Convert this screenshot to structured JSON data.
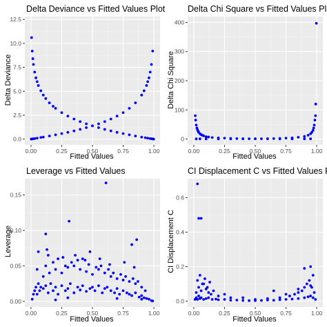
{
  "theme": {
    "panel_bg": "#ebebeb",
    "grid_major": "#ffffff",
    "grid_minor": "#f4f4f4",
    "point_color": "#0000ff",
    "tick_color": "#333333",
    "text_color": "#000000",
    "tick_text_color": "#4d4d4d"
  },
  "chart_data": [
    {
      "type": "scatter",
      "title": "Delta Deviance vs Fitted Values Plot",
      "xlabel": "Fitted Values",
      "ylabel": "Delta Deviance",
      "xlim": [
        -0.05,
        1.05
      ],
      "ylim": [
        -0.6,
        12.8
      ],
      "xticks": [
        0.0,
        0.25,
        0.5,
        0.75,
        1.0
      ],
      "xtick_labels": [
        "0.00",
        "0.25",
        "0.50",
        "0.75",
        "1.00"
      ],
      "yticks": [
        0.0,
        2.5,
        5.0,
        7.5,
        10.0,
        12.5
      ],
      "ytick_labels": [
        "0.0",
        "2.5",
        "5.0",
        "7.5",
        "10.0",
        "12.5"
      ],
      "grid": true,
      "series": [
        {
          "marker": "point",
          "x": [
            0.005,
            0.01,
            0.015,
            0.02,
            0.03,
            0.04,
            0.05,
            0.06,
            0.08,
            0.1,
            0.12,
            0.15,
            0.18,
            0.2,
            0.25,
            0.3,
            0.35,
            0.4,
            0.45,
            0.5,
            0.55,
            0.6,
            0.65,
            0.7,
            0.75,
            0.8,
            0.85,
            0.9,
            0.93,
            0.95,
            0.97,
            0.98,
            0.99,
            0.995,
            0.998,
            0.002,
            0.005,
            0.01,
            0.02,
            0.03,
            0.05,
            0.08,
            0.1,
            0.15,
            0.2,
            0.25,
            0.3,
            0.35,
            0.4,
            0.45,
            0.5,
            0.55,
            0.6,
            0.65,
            0.7,
            0.75,
            0.8,
            0.85,
            0.9,
            0.92,
            0.94,
            0.95,
            0.96,
            0.97,
            0.98,
            0.99
          ],
          "y": [
            10.6,
            9.2,
            8.4,
            7.8,
            7.0,
            6.4,
            6.0,
            5.6,
            5.05,
            4.6,
            4.24,
            3.79,
            3.43,
            3.22,
            2.77,
            2.41,
            2.1,
            1.83,
            1.6,
            1.39,
            1.2,
            1.02,
            0.86,
            0.71,
            0.58,
            0.45,
            0.33,
            0.21,
            0.15,
            0.1,
            0.06,
            0.04,
            0.02,
            0.01,
            0.0,
            0.0,
            0.01,
            0.02,
            0.04,
            0.06,
            0.1,
            0.17,
            0.21,
            0.33,
            0.45,
            0.58,
            0.71,
            0.86,
            1.02,
            1.2,
            1.39,
            1.6,
            1.83,
            2.1,
            2.41,
            2.77,
            3.22,
            3.79,
            4.6,
            5.05,
            5.6,
            6.0,
            6.4,
            7.0,
            7.8,
            9.2
          ]
        }
      ]
    },
    {
      "type": "scatter",
      "title": "Delta Chi Square vs Fitted Values Plot",
      "xlabel": "Fitted Values",
      "ylabel": "Delta Chi Square",
      "xlim": [
        -0.05,
        1.05
      ],
      "ylim": [
        -20,
        420
      ],
      "xticks": [
        0.0,
        0.25,
        0.5,
        0.75,
        1.0
      ],
      "xtick_labels": [
        "0.00",
        "0.25",
        "0.50",
        "0.75",
        "1.00"
      ],
      "yticks": [
        0,
        100,
        200,
        300,
        400
      ],
      "ytick_labels": [
        "0",
        "100",
        "200",
        "300",
        "400"
      ],
      "grid": true,
      "series": [
        {
          "marker": "point",
          "x": [
            0.012,
            0.015,
            0.02,
            0.025,
            0.03,
            0.035,
            0.04,
            0.05,
            0.06,
            0.07,
            0.08,
            0.1,
            0.12,
            0.15,
            0.2,
            0.25,
            0.3,
            0.35,
            0.4,
            0.45,
            0.5,
            0.55,
            0.6,
            0.65,
            0.7,
            0.75,
            0.8,
            0.85,
            0.9,
            0.93,
            0.95,
            0.96,
            0.97,
            0.975,
            0.98,
            0.985,
            0.99,
            0.992,
            0.997,
            0.02,
            0.05,
            0.1,
            0.2,
            0.3,
            0.4,
            0.5,
            0.6,
            0.7,
            0.8,
            0.9,
            0.95
          ],
          "y": [
            80,
            65,
            48,
            38,
            32,
            27,
            23,
            18,
            15,
            13,
            11,
            8,
            7,
            5,
            4,
            3,
            2,
            1.5,
            1.2,
            1,
            1,
            1,
            1.2,
            1.5,
            2,
            3,
            4,
            6,
            9,
            13,
            18,
            23,
            30,
            38,
            48,
            65,
            80,
            120,
            397,
            0.5,
            0.8,
            0.5,
            0.3,
            0.4,
            0.6,
            0.8,
            0.6,
            0.4,
            0.3,
            0.5,
            0.8
          ]
        }
      ]
    },
    {
      "type": "scatter",
      "title": "Leverage vs Fitted Values",
      "xlabel": "Fitted Values",
      "ylabel": "Leverage",
      "xlim": [
        -0.05,
        1.05
      ],
      "ylim": [
        -0.008,
        0.173
      ],
      "xticks": [
        0.0,
        0.25,
        0.5,
        0.75,
        1.0
      ],
      "xtick_labels": [
        "0.00",
        "0.25",
        "0.50",
        "0.75",
        "1.00"
      ],
      "yticks": [
        0.0,
        0.05,
        0.1,
        0.15
      ],
      "ytick_labels": [
        "0.00",
        "0.05",
        "0.10",
        "0.15"
      ],
      "grid": true,
      "series": [
        {
          "marker": "point",
          "x": [
            0.01,
            0.02,
            0.03,
            0.04,
            0.05,
            0.06,
            0.07,
            0.08,
            0.1,
            0.12,
            0.14,
            0.16,
            0.18,
            0.2,
            0.22,
            0.25,
            0.28,
            0.3,
            0.32,
            0.35,
            0.38,
            0.4,
            0.42,
            0.45,
            0.48,
            0.5,
            0.52,
            0.55,
            0.58,
            0.6,
            0.62,
            0.65,
            0.68,
            0.7,
            0.72,
            0.75,
            0.78,
            0.8,
            0.82,
            0.85,
            0.88,
            0.9,
            0.92,
            0.94,
            0.96,
            0.98,
            0.99,
            0.1,
            0.15,
            0.2,
            0.25,
            0.3,
            0.35,
            0.4,
            0.45,
            0.5,
            0.55,
            0.6,
            0.65,
            0.7,
            0.75,
            0.8,
            0.85,
            0.9,
            0.05,
            0.12,
            0.18,
            0.22,
            0.28,
            0.33,
            0.38,
            0.42,
            0.47,
            0.53,
            0.57,
            0.63,
            0.67,
            0.73,
            0.77,
            0.83,
            0.87,
            0.93,
            0.06,
            0.14,
            0.26,
            0.36,
            0.44,
            0.56,
            0.64,
            0.76,
            0.84,
            0.12,
            0.31,
            0.61,
            0.82,
            0.86,
            0.13,
            0.48,
            0.3,
            0.7,
            0.9,
            0.2
          ],
          "y": [
            0.003,
            0.01,
            0.015,
            0.02,
            0.01,
            0.025,
            0.015,
            0.02,
            0.018,
            0.022,
            0.012,
            0.025,
            0.015,
            0.02,
            0.01,
            0.022,
            0.015,
            0.018,
            0.025,
            0.012,
            0.02,
            0.016,
            0.022,
            0.014,
            0.018,
            0.02,
            0.015,
            0.022,
            0.012,
            0.018,
            0.02,
            0.015,
            0.012,
            0.018,
            0.01,
            0.015,
            0.012,
            0.01,
            0.008,
            0.012,
            0.006,
            0.008,
            0.005,
            0.004,
            0.003,
            0.001,
            0.0005,
            0.035,
            0.04,
            0.045,
            0.04,
            0.048,
            0.05,
            0.045,
            0.042,
            0.038,
            0.045,
            0.04,
            0.035,
            0.032,
            0.03,
            0.028,
            0.025,
            0.02,
            0.045,
            0.05,
            0.055,
            0.06,
            0.05,
            0.055,
            0.058,
            0.06,
            0.052,
            0.048,
            0.05,
            0.045,
            0.04,
            0.038,
            0.035,
            0.032,
            0.028,
            0.015,
            0.07,
            0.065,
            0.062,
            0.065,
            0.058,
            0.06,
            0.052,
            0.055,
            0.048,
            0.095,
            0.113,
            0.167,
            0.08,
            0.087,
            0.073,
            0.07,
            0.005,
            0.004,
            0.003,
            0.002
          ]
        }
      ]
    },
    {
      "type": "scatter",
      "title": "CI Displacement C vs Fitted Values Plot",
      "xlabel": "Fitted Values",
      "ylabel": "CI Displacement C",
      "xlim": [
        -0.05,
        1.05
      ],
      "ylim": [
        -0.034,
        0.71
      ],
      "xticks": [
        0.0,
        0.25,
        0.5,
        0.75,
        1.0
      ],
      "xtick_labels": [
        "0.00",
        "0.25",
        "0.50",
        "0.75",
        "1.00"
      ],
      "yticks": [
        0.0,
        0.2,
        0.4,
        0.6
      ],
      "ytick_labels": [
        "0.0",
        "0.2",
        "0.4",
        "0.6"
      ],
      "grid": true,
      "series": [
        {
          "marker": "point",
          "x": [
            0.01,
            0.02,
            0.03,
            0.04,
            0.05,
            0.06,
            0.08,
            0.1,
            0.12,
            0.15,
            0.18,
            0.2,
            0.25,
            0.3,
            0.35,
            0.4,
            0.45,
            0.5,
            0.55,
            0.6,
            0.65,
            0.7,
            0.75,
            0.8,
            0.85,
            0.9,
            0.93,
            0.95,
            0.97,
            0.99,
            0.02,
            0.04,
            0.06,
            0.08,
            0.1,
            0.12,
            0.14,
            0.16,
            0.2,
            0.25,
            0.3,
            0.4,
            0.5,
            0.6,
            0.7,
            0.78,
            0.82,
            0.85,
            0.88,
            0.9,
            0.92,
            0.94,
            0.96,
            0.98,
            0.03,
            0.05,
            0.07,
            0.09,
            0.11,
            0.13,
            0.65,
            0.75,
            0.85,
            0.95,
            0.03,
            0.04,
            0.06,
            0.9,
            0.95,
            0.97
          ],
          "y": [
            0.01,
            0.02,
            0.01,
            0.03,
            0.015,
            0.02,
            0.01,
            0.015,
            0.02,
            0.01,
            0.012,
            0.008,
            0.01,
            0.005,
            0.006,
            0.004,
            0.003,
            0.003,
            0.004,
            0.006,
            0.005,
            0.008,
            0.01,
            0.012,
            0.015,
            0.02,
            0.025,
            0.03,
            0.02,
            0.01,
            0.05,
            0.08,
            0.06,
            0.1,
            0.07,
            0.05,
            0.04,
            0.06,
            0.03,
            0.04,
            0.02,
            0.02,
            0.01,
            0.015,
            0.02,
            0.03,
            0.04,
            0.05,
            0.06,
            0.08,
            0.1,
            0.12,
            0.08,
            0.05,
            0.12,
            0.15,
            0.1,
            0.13,
            0.08,
            0.11,
            0.06,
            0.04,
            0.07,
            0.09,
            0.68,
            0.48,
            0.48,
            0.19,
            0.2,
            0.15
          ]
        }
      ]
    }
  ]
}
